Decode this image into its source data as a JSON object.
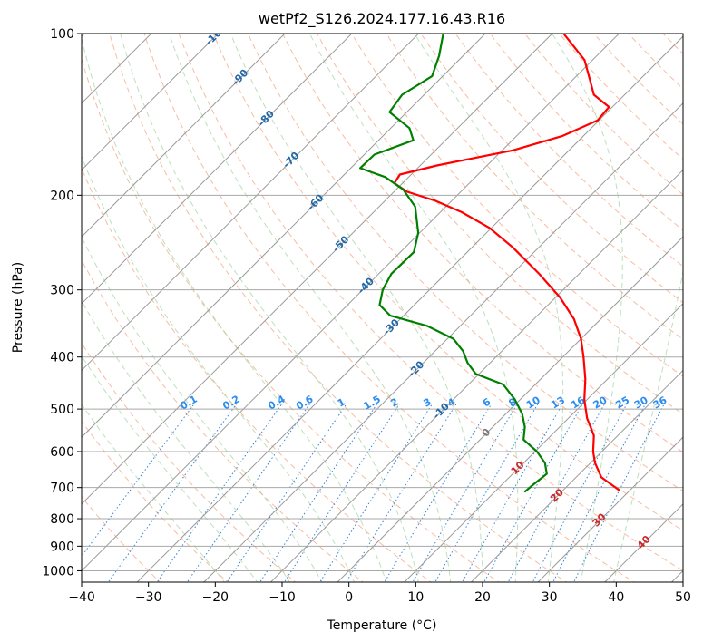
{
  "chart_data": {
    "type": "line",
    "title": "wetPf2_S126.2024.177.16.43.R16",
    "xlabel": "Temperature (°C)",
    "ylabel": "Pressure (hPa)",
    "xlim": [
      -40,
      50
    ],
    "ylim": [
      1050,
      100
    ],
    "y_scale": "log",
    "x_ticks": [
      -40,
      -30,
      -20,
      -10,
      0,
      10,
      20,
      30,
      40,
      50
    ],
    "y_ticks": [
      1000,
      900,
      800,
      700,
      600,
      500,
      400,
      300,
      200,
      100
    ],
    "grid": true,
    "skew": "skew-T log-P",
    "background_lines": {
      "isotherms_C": [
        -100,
        -90,
        -80,
        -70,
        -60,
        -50,
        -40,
        -30,
        -20,
        -10
      ],
      "dry_adiabats": "dashed light red",
      "moist_adiabats": "dashed light green",
      "mixing_ratio_g_kg": [
        0.1,
        0.2,
        0.4,
        0.6,
        1,
        1.5,
        2,
        3,
        4,
        6,
        8,
        10,
        13,
        16,
        20,
        25,
        30,
        36
      ],
      "isotherm_labels_warm": [
        0,
        10,
        20,
        30,
        40
      ]
    },
    "series": [
      {
        "color": "#ff0000",
        "kind": "temperature",
        "points": [
          {
            "p": 708,
            "t": 28.4
          },
          {
            "p": 670,
            "t": 23.8
          },
          {
            "p": 630,
            "t": 20.7
          },
          {
            "p": 600,
            "t": 18.7
          },
          {
            "p": 560,
            "t": 16.4
          },
          {
            "p": 520,
            "t": 12.8
          },
          {
            "p": 480,
            "t": 9.6
          },
          {
            "p": 440,
            "t": 6.7
          },
          {
            "p": 400,
            "t": 3.1
          },
          {
            "p": 370,
            "t": 0.0
          },
          {
            "p": 340,
            "t": -4.0
          },
          {
            "p": 310,
            "t": -9.3
          },
          {
            "p": 280,
            "t": -16.0
          },
          {
            "p": 250,
            "t": -23.9
          },
          {
            "p": 230,
            "t": -30.3
          },
          {
            "p": 215,
            "t": -36.8
          },
          {
            "p": 205,
            "t": -42.3
          },
          {
            "p": 197,
            "t": -48.0
          },
          {
            "p": 190,
            "t": -51.2
          },
          {
            "p": 183,
            "t": -51.7
          },
          {
            "p": 176,
            "t": -47.5
          },
          {
            "p": 165,
            "t": -38.4
          },
          {
            "p": 155,
            "t": -33.1
          },
          {
            "p": 145,
            "t": -30.2
          },
          {
            "p": 137,
            "t": -30.5
          },
          {
            "p": 130,
            "t": -34.6
          },
          {
            "p": 122,
            "t": -37.4
          },
          {
            "p": 112,
            "t": -41.2
          },
          {
            "p": 100,
            "t": -48.3
          }
        ]
      },
      {
        "color": "#008000",
        "kind": "dewpoint",
        "points": [
          {
            "p": 712,
            "t": 14.5
          },
          {
            "p": 690,
            "t": 14.7
          },
          {
            "p": 660,
            "t": 15.1
          },
          {
            "p": 630,
            "t": 13.2
          },
          {
            "p": 600,
            "t": 10.3
          },
          {
            "p": 570,
            "t": 6.5
          },
          {
            "p": 540,
            "t": 4.8
          },
          {
            "p": 510,
            "t": 2.4
          },
          {
            "p": 480,
            "t": -0.8
          },
          {
            "p": 450,
            "t": -4.8
          },
          {
            "p": 430,
            "t": -10.5
          },
          {
            "p": 410,
            "t": -13.4
          },
          {
            "p": 390,
            "t": -15.8
          },
          {
            "p": 370,
            "t": -19.1
          },
          {
            "p": 350,
            "t": -25.0
          },
          {
            "p": 335,
            "t": -32.0
          },
          {
            "p": 320,
            "t": -35.2
          },
          {
            "p": 300,
            "t": -37.0
          },
          {
            "p": 280,
            "t": -38.1
          },
          {
            "p": 255,
            "t": -38.0
          },
          {
            "p": 235,
            "t": -40.2
          },
          {
            "p": 210,
            "t": -44.6
          },
          {
            "p": 195,
            "t": -49.0
          },
          {
            "p": 185,
            "t": -53.5
          },
          {
            "p": 178,
            "t": -58.6
          },
          {
            "p": 168,
            "t": -58.5
          },
          {
            "p": 158,
            "t": -54.8
          },
          {
            "p": 150,
            "t": -57.2
          },
          {
            "p": 140,
            "t": -62.6
          },
          {
            "p": 130,
            "t": -63.3
          },
          {
            "p": 120,
            "t": -61.6
          },
          {
            "p": 110,
            "t": -63.6
          },
          {
            "p": 100,
            "t": -66.3
          }
        ]
      }
    ]
  }
}
